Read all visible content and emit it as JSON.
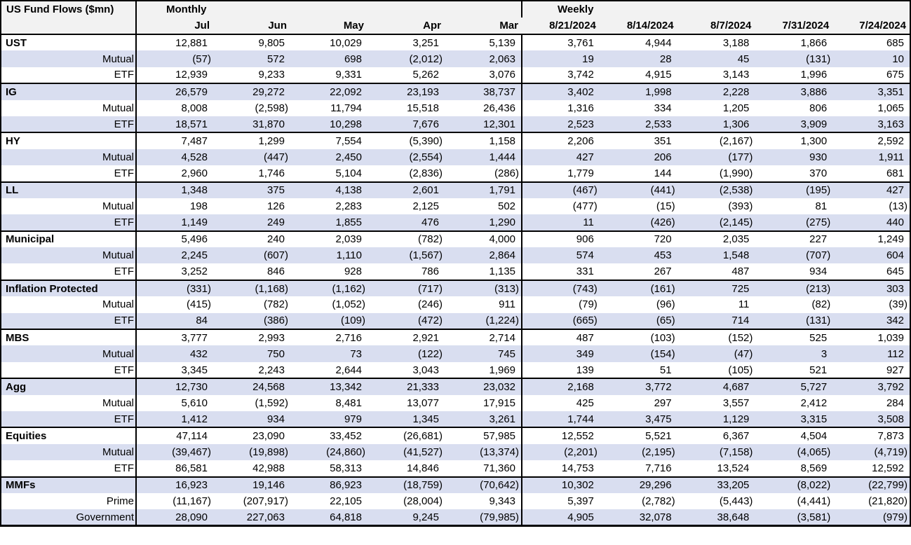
{
  "title": "US Fund Flows ($mn)",
  "header": {
    "monthly_label": "Monthly",
    "weekly_label": "Weekly",
    "monthly_columns": [
      "Jul",
      "Jun",
      "May",
      "Apr",
      "Mar"
    ],
    "weekly_columns": [
      "8/21/2024",
      "8/14/2024",
      "8/7/2024",
      "7/31/2024",
      "7/24/2024"
    ]
  },
  "colors": {
    "row_shade": "#D9DEF0",
    "header_bg": "#F2F2F2",
    "border": "#000000",
    "background": "#FFFFFF"
  },
  "groups": [
    {
      "rows": [
        {
          "label": "UST",
          "type": "category",
          "monthly": [
            "12,881",
            "9,805",
            "10,029",
            "3,251",
            "5,139"
          ],
          "weekly": [
            "3,761",
            "4,944",
            "3,188",
            "1,866",
            "685"
          ]
        },
        {
          "label": "Mutual",
          "type": "sub",
          "monthly": [
            "(57)",
            "572",
            "698",
            "(2,012)",
            "2,063"
          ],
          "weekly": [
            "19",
            "28",
            "45",
            "(131)",
            "10"
          ]
        },
        {
          "label": "ETF",
          "type": "sub",
          "monthly": [
            "12,939",
            "9,233",
            "9,331",
            "5,262",
            "3,076"
          ],
          "weekly": [
            "3,742",
            "4,915",
            "3,143",
            "1,996",
            "675"
          ]
        }
      ]
    },
    {
      "rows": [
        {
          "label": "IG",
          "type": "category",
          "monthly": [
            "26,579",
            "29,272",
            "22,092",
            "23,193",
            "38,737"
          ],
          "weekly": [
            "3,402",
            "1,998",
            "2,228",
            "3,886",
            "3,351"
          ]
        },
        {
          "label": "Mutual",
          "type": "sub",
          "monthly": [
            "8,008",
            "(2,598)",
            "11,794",
            "15,518",
            "26,436"
          ],
          "weekly": [
            "1,316",
            "334",
            "1,205",
            "806",
            "1,065"
          ]
        },
        {
          "label": "ETF",
          "type": "sub",
          "monthly": [
            "18,571",
            "31,870",
            "10,298",
            "7,676",
            "12,301"
          ],
          "weekly": [
            "2,523",
            "2,533",
            "1,306",
            "3,909",
            "3,163"
          ]
        }
      ]
    },
    {
      "rows": [
        {
          "label": "HY",
          "type": "category",
          "monthly": [
            "7,487",
            "1,299",
            "7,554",
            "(5,390)",
            "1,158"
          ],
          "weekly": [
            "2,206",
            "351",
            "(2,167)",
            "1,300",
            "2,592"
          ]
        },
        {
          "label": "Mutual",
          "type": "sub",
          "monthly": [
            "4,528",
            "(447)",
            "2,450",
            "(2,554)",
            "1,444"
          ],
          "weekly": [
            "427",
            "206",
            "(177)",
            "930",
            "1,911"
          ]
        },
        {
          "label": "ETF",
          "type": "sub",
          "monthly": [
            "2,960",
            "1,746",
            "5,104",
            "(2,836)",
            "(286)"
          ],
          "weekly": [
            "1,779",
            "144",
            "(1,990)",
            "370",
            "681"
          ]
        }
      ]
    },
    {
      "rows": [
        {
          "label": "LL",
          "type": "category",
          "monthly": [
            "1,348",
            "375",
            "4,138",
            "2,601",
            "1,791"
          ],
          "weekly": [
            "(467)",
            "(441)",
            "(2,538)",
            "(195)",
            "427"
          ]
        },
        {
          "label": "Mutual",
          "type": "sub",
          "monthly": [
            "198",
            "126",
            "2,283",
            "2,125",
            "502"
          ],
          "weekly": [
            "(477)",
            "(15)",
            "(393)",
            "81",
            "(13)"
          ]
        },
        {
          "label": "ETF",
          "type": "sub",
          "monthly": [
            "1,149",
            "249",
            "1,855",
            "476",
            "1,290"
          ],
          "weekly": [
            "11",
            "(426)",
            "(2,145)",
            "(275)",
            "440"
          ]
        }
      ]
    },
    {
      "rows": [
        {
          "label": "Municipal",
          "type": "category",
          "monthly": [
            "5,496",
            "240",
            "2,039",
            "(782)",
            "4,000"
          ],
          "weekly": [
            "906",
            "720",
            "2,035",
            "227",
            "1,249"
          ]
        },
        {
          "label": "Mutual",
          "type": "sub",
          "monthly": [
            "2,245",
            "(607)",
            "1,110",
            "(1,567)",
            "2,864"
          ],
          "weekly": [
            "574",
            "453",
            "1,548",
            "(707)",
            "604"
          ]
        },
        {
          "label": "ETF",
          "type": "sub",
          "monthly": [
            "3,252",
            "846",
            "928",
            "786",
            "1,135"
          ],
          "weekly": [
            "331",
            "267",
            "487",
            "934",
            "645"
          ]
        }
      ]
    },
    {
      "rows": [
        {
          "label": "Inflation Protected",
          "type": "category",
          "monthly": [
            "(331)",
            "(1,168)",
            "(1,162)",
            "(717)",
            "(313)"
          ],
          "weekly": [
            "(743)",
            "(161)",
            "725",
            "(213)",
            "303"
          ]
        },
        {
          "label": "Mutual",
          "type": "sub",
          "monthly": [
            "(415)",
            "(782)",
            "(1,052)",
            "(246)",
            "911"
          ],
          "weekly": [
            "(79)",
            "(96)",
            "11",
            "(82)",
            "(39)"
          ]
        },
        {
          "label": "ETF",
          "type": "sub",
          "monthly": [
            "84",
            "(386)",
            "(109)",
            "(472)",
            "(1,224)"
          ],
          "weekly": [
            "(665)",
            "(65)",
            "714",
            "(131)",
            "342"
          ]
        }
      ]
    },
    {
      "rows": [
        {
          "label": "MBS",
          "type": "category",
          "monthly": [
            "3,777",
            "2,993",
            "2,716",
            "2,921",
            "2,714"
          ],
          "weekly": [
            "487",
            "(103)",
            "(152)",
            "525",
            "1,039"
          ]
        },
        {
          "label": "Mutual",
          "type": "sub",
          "monthly": [
            "432",
            "750",
            "73",
            "(122)",
            "745"
          ],
          "weekly": [
            "349",
            "(154)",
            "(47)",
            "3",
            "112"
          ]
        },
        {
          "label": "ETF",
          "type": "sub",
          "monthly": [
            "3,345",
            "2,243",
            "2,644",
            "3,043",
            "1,969"
          ],
          "weekly": [
            "139",
            "51",
            "(105)",
            "521",
            "927"
          ]
        }
      ]
    },
    {
      "rows": [
        {
          "label": "Agg",
          "type": "category",
          "monthly": [
            "12,730",
            "24,568",
            "13,342",
            "21,333",
            "23,032"
          ],
          "weekly": [
            "2,168",
            "3,772",
            "4,687",
            "5,727",
            "3,792"
          ]
        },
        {
          "label": "Mutual",
          "type": "sub",
          "monthly": [
            "5,610",
            "(1,592)",
            "8,481",
            "13,077",
            "17,915"
          ],
          "weekly": [
            "425",
            "297",
            "3,557",
            "2,412",
            "284"
          ]
        },
        {
          "label": "ETF",
          "type": "sub",
          "monthly": [
            "1,412",
            "934",
            "979",
            "1,345",
            "3,261"
          ],
          "weekly": [
            "1,744",
            "3,475",
            "1,129",
            "3,315",
            "3,508"
          ]
        }
      ]
    },
    {
      "rows": [
        {
          "label": "Equities",
          "type": "category",
          "monthly": [
            "47,114",
            "23,090",
            "33,452",
            "(26,681)",
            "57,985"
          ],
          "weekly": [
            "12,552",
            "5,521",
            "6,367",
            "4,504",
            "7,873"
          ]
        },
        {
          "label": "Mutual",
          "type": "sub",
          "monthly": [
            "(39,467)",
            "(19,898)",
            "(24,860)",
            "(41,527)",
            "(13,374)"
          ],
          "weekly": [
            "(2,201)",
            "(2,195)",
            "(7,158)",
            "(4,065)",
            "(4,719)"
          ]
        },
        {
          "label": "ETF",
          "type": "sub",
          "monthly": [
            "86,581",
            "42,988",
            "58,313",
            "14,846",
            "71,360"
          ],
          "weekly": [
            "14,753",
            "7,716",
            "13,524",
            "8,569",
            "12,592"
          ]
        }
      ]
    },
    {
      "rows": [
        {
          "label": "MMFs",
          "type": "category",
          "monthly": [
            "16,923",
            "19,146",
            "86,923",
            "(18,759)",
            "(70,642)"
          ],
          "weekly": [
            "10,302",
            "29,296",
            "33,205",
            "(8,022)",
            "(22,799)"
          ]
        },
        {
          "label": "Prime",
          "type": "sub",
          "monthly": [
            "(11,167)",
            "(207,917)",
            "22,105",
            "(28,004)",
            "9,343"
          ],
          "weekly": [
            "5,397",
            "(2,782)",
            "(5,443)",
            "(4,441)",
            "(21,820)"
          ]
        },
        {
          "label": "Government",
          "type": "sub",
          "monthly": [
            "28,090",
            "227,063",
            "64,818",
            "9,245",
            "(79,985)"
          ],
          "weekly": [
            "4,905",
            "32,078",
            "38,648",
            "(3,581)",
            "(979)"
          ]
        }
      ]
    }
  ]
}
